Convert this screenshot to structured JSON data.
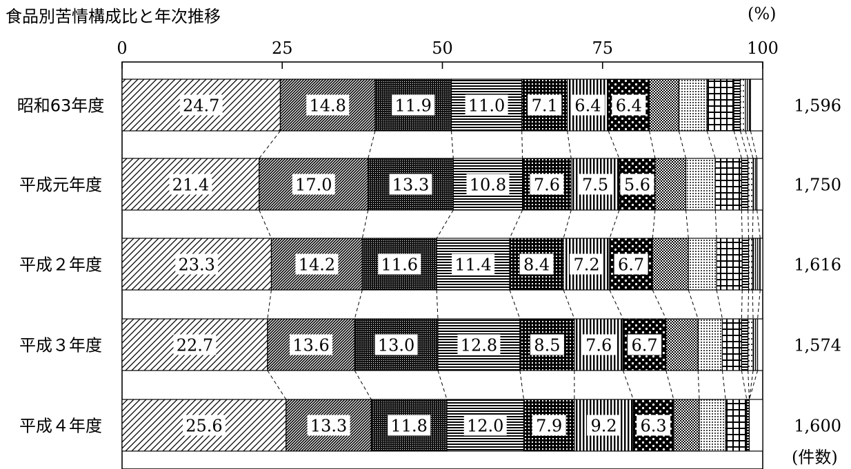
{
  "title": "食品別苦情構成比と年次推移",
  "unit_label": "(%)",
  "count_unit_label": "(件数)",
  "chart_data": {
    "type": "bar",
    "orientation": "horizontal",
    "stacked": true,
    "xlim": [
      0,
      100
    ],
    "x_ticks": [
      "0",
      "25",
      "50",
      "75",
      "100"
    ],
    "categories": [
      "昭和63年度",
      "平成元年度",
      "平成２年度",
      "平成３年度",
      "平成４年度"
    ],
    "counts": [
      "1,596",
      "1,750",
      "1,616",
      "1,574",
      "1,600"
    ],
    "rows": [
      [
        24.7,
        14.8,
        11.9,
        11.0,
        7.1,
        6.4,
        6.4,
        4.6,
        4.4,
        4.2,
        1.0,
        0.8,
        0.8,
        1.9
      ],
      [
        21.4,
        17.0,
        13.3,
        10.8,
        7.6,
        7.5,
        5.6,
        4.8,
        4.6,
        4.1,
        1.0,
        0.8,
        0.6,
        0.9
      ],
      [
        23.3,
        14.2,
        11.6,
        11.4,
        8.4,
        7.2,
        6.7,
        5.6,
        4.4,
        4.0,
        1.0,
        0.6,
        1.2,
        0.4
      ],
      [
        22.7,
        13.6,
        13.0,
        12.8,
        8.5,
        7.6,
        6.7,
        5.0,
        3.8,
        3.0,
        1.0,
        0.8,
        0.7,
        0.8
      ],
      [
        25.6,
        13.3,
        11.8,
        12.0,
        7.9,
        9.2,
        6.3,
        4.0,
        4.1,
        3.3,
        0.4,
        0.0,
        0.0,
        2.1
      ]
    ],
    "data_labels": [
      [
        "24.7",
        "14.8",
        "11.9",
        "11.0",
        "7.1",
        "6.4",
        "6.4"
      ],
      [
        "21.4",
        "17.0",
        "13.3",
        "10.8",
        "7.6",
        "7.5",
        "5.6"
      ],
      [
        "23.3",
        "14.2",
        "11.6",
        "11.4",
        "8.4",
        "7.2",
        "6.7"
      ],
      [
        "22.7",
        "13.6",
        "13.0",
        "12.8",
        "8.5",
        "7.6",
        "6.7"
      ],
      [
        "25.6",
        "13.3",
        "11.8",
        "12.0",
        "7.9",
        "9.2",
        "6.3"
      ]
    ],
    "grid": false,
    "legend": "none"
  }
}
